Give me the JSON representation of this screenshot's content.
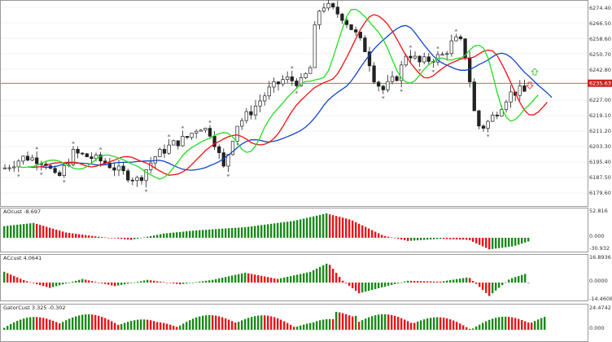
{
  "colors": {
    "bull": "#1a8a1a",
    "bear": "#e8141a",
    "ma_fast": "#22dd22",
    "ma_mid": "#ee1111",
    "ma_slow": "#1144cc",
    "price_line": "#cc2222",
    "grid": "#e6e6e6",
    "frame": "#9a9a9a",
    "candle": "#222222",
    "fractal": "#8a8a8a",
    "arrow": "#44cc44",
    "arrow_down": "#ee4444"
  },
  "chart_data": [
    {
      "type": "candlestick",
      "title": "",
      "y_axis_labels": [
        "6274.40",
        "6266.50",
        "6258.60",
        "6250.70",
        "6242.80",
        "6235.63",
        "6227.00",
        "6219.10",
        "6211.20",
        "6203.30",
        "6195.40",
        "6187.50",
        "6179.60"
      ],
      "ylim": [
        6174.0,
        6278.0
      ],
      "current_price": "6235.63",
      "current_price_value": 6235.63,
      "series": [
        {
          "name": "",
          "kind": "sma_fast"
        },
        {
          "name": "",
          "kind": "sma_mid"
        },
        {
          "name": "",
          "kind": "sma_slow"
        }
      ]
    },
    {
      "type": "bar",
      "label": "AOcust -8.697",
      "y_axis_labels": [
        "52.816",
        "0.000",
        "-30.932"
      ],
      "ylim": [
        -30.932,
        52.816
      ]
    },
    {
      "type": "bar",
      "label": "ACcust 4.0641",
      "y_axis_labels": [
        "16.8936",
        "0.0000",
        "-14.4608"
      ],
      "ylim": [
        -14.4608,
        16.8936
      ]
    },
    {
      "type": "bar",
      "label": "GatorCust 3.325 -0.302",
      "y_axis_labels": [
        "24.4742",
        "0.000"
      ],
      "ylim": [
        -24.4742,
        24.4742
      ]
    }
  ]
}
